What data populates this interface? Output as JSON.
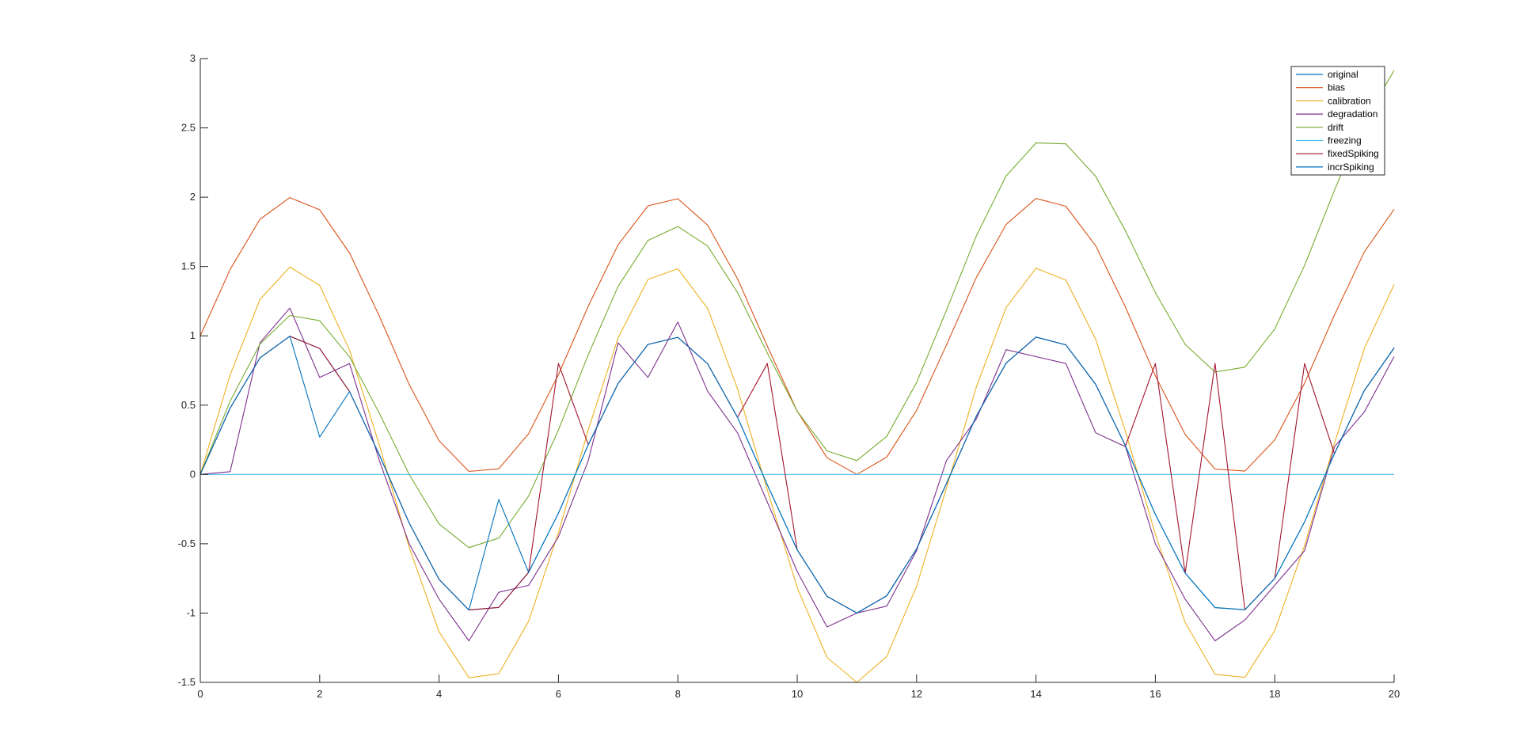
{
  "chart_data": {
    "type": "line",
    "title": "",
    "xlabel": "",
    "ylabel": "",
    "xlim": [
      0,
      20
    ],
    "ylim": [
      -1.5,
      3
    ],
    "xticks": [
      0,
      2,
      4,
      6,
      8,
      10,
      12,
      14,
      16,
      18,
      20
    ],
    "yticks": [
      -1.5,
      -1,
      -0.5,
      0,
      0.5,
      1,
      1.5,
      2,
      2.5,
      3
    ],
    "xtick_labels": [
      "0",
      "2",
      "4",
      "6",
      "8",
      "10",
      "12",
      "14",
      "16",
      "18",
      "20"
    ],
    "ytick_labels": [
      "-1.5",
      "-1",
      "-0.5",
      "0",
      "0.5",
      "1",
      "1.5",
      "2",
      "2.5",
      "3"
    ],
    "grid": false,
    "legend_position": "top-right",
    "x": [
      0,
      0.5,
      1,
      1.5,
      2,
      2.5,
      3,
      3.5,
      4,
      4.5,
      5,
      5.5,
      6,
      6.5,
      7,
      7.5,
      8,
      8.5,
      9,
      9.5,
      10,
      10.5,
      11,
      11.5,
      12,
      12.5,
      13,
      13.5,
      14,
      14.5,
      15,
      15.5,
      16,
      16.5,
      17,
      17.5,
      18,
      18.5,
      19,
      19.5,
      20
    ],
    "series": [
      {
        "name": "original",
        "color": "#0072BD",
        "values": [
          0,
          0.479,
          0.841,
          0.997,
          0.909,
          0.598,
          0.141,
          -0.351,
          -0.757,
          -0.978,
          -0.959,
          -0.706,
          -0.279,
          0.215,
          0.657,
          0.938,
          0.989,
          0.798,
          0.412,
          -0.075,
          -0.544,
          -0.88,
          -1,
          -0.875,
          -0.537,
          -0.066,
          0.42,
          0.803,
          0.991,
          0.935,
          0.65,
          0.206,
          -0.288,
          -0.712,
          -0.961,
          -0.976,
          -0.751,
          -0.342,
          0.15,
          0.605,
          0.913
        ]
      },
      {
        "name": "bias",
        "color": "#D95319",
        "values": [
          1,
          1.479,
          1.841,
          1.997,
          1.909,
          1.598,
          1.141,
          0.649,
          0.243,
          0.022,
          0.041,
          0.294,
          0.721,
          1.215,
          1.657,
          1.938,
          1.989,
          1.798,
          1.412,
          0.925,
          0.456,
          0.12,
          0,
          0.125,
          0.463,
          0.934,
          1.42,
          1.803,
          1.991,
          1.935,
          1.65,
          1.206,
          0.712,
          0.288,
          0.039,
          0.024,
          0.249,
          0.658,
          1.15,
          1.605,
          1.913
        ]
      },
      {
        "name": "calibration",
        "color": "#EDB120",
        "values": [
          0,
          0.719,
          1.262,
          1.496,
          1.364,
          0.897,
          0.212,
          -0.527,
          -1.135,
          -1.467,
          -1.438,
          -1.059,
          -0.419,
          0.323,
          0.985,
          1.407,
          1.484,
          1.197,
          0.618,
          -0.113,
          -0.816,
          -1.32,
          -1.5,
          -1.313,
          -0.806,
          -0.099,
          0.63,
          1.205,
          1.487,
          1.403,
          0.975,
          0.309,
          -0.432,
          -1.068,
          -1.442,
          -1.464,
          -1.127,
          -0.513,
          0.225,
          0.908,
          1.37
        ]
      },
      {
        "name": "degradation",
        "color": "#7E2F8E",
        "values": [
          0,
          0.02,
          0.95,
          1.2,
          0.7,
          0.8,
          0.1,
          -0.5,
          -0.9,
          -1.2,
          -0.85,
          -0.8,
          -0.45,
          0.1,
          0.95,
          0.7,
          1.1,
          0.6,
          0.3,
          -0.2,
          -0.7,
          -1.1,
          -1.0,
          -0.95,
          -0.55,
          0.1,
          0.4,
          0.9,
          0.85,
          0.8,
          0.3,
          0.2,
          -0.5,
          -0.9,
          -1.2,
          -1.05,
          -0.8,
          -0.55,
          0.2,
          0.45,
          0.85
        ]
      },
      {
        "name": "drift",
        "color": "#77AC30",
        "values": [
          0,
          0.529,
          0.941,
          1.147,
          1.109,
          0.848,
          0.441,
          -0.001,
          -0.357,
          -0.528,
          -0.459,
          -0.156,
          0.321,
          0.865,
          1.357,
          1.688,
          1.789,
          1.648,
          1.312,
          0.875,
          0.456,
          0.17,
          0.1,
          0.275,
          0.663,
          1.184,
          1.72,
          2.153,
          2.391,
          2.385,
          2.15,
          1.756,
          1.312,
          0.938,
          0.739,
          0.774,
          1.049,
          1.508,
          2.05,
          2.555,
          2.913
        ]
      },
      {
        "name": "freezing",
        "color": "#4DBEEE",
        "values": [
          0,
          0,
          0,
          0,
          0,
          0,
          0,
          0,
          0,
          0,
          0,
          0,
          0,
          0,
          0,
          0,
          0,
          0,
          0,
          0,
          0,
          0,
          0,
          0,
          0,
          0,
          0,
          0,
          0,
          0,
          0,
          0,
          0,
          0,
          0,
          0,
          0,
          0,
          0,
          0,
          0
        ]
      },
      {
        "name": "fixedSpiking",
        "color": "#A2142F",
        "values": [
          0,
          0.479,
          0.841,
          0.997,
          0.909,
          0.598,
          0.141,
          -0.351,
          -0.757,
          -0.978,
          -0.959,
          -0.706,
          0.8,
          0.215,
          0.657,
          0.938,
          0.989,
          0.798,
          0.412,
          0.8,
          -0.544,
          -0.88,
          -1,
          -0.875,
          -0.537,
          -0.066,
          0.42,
          0.803,
          0.991,
          0.935,
          0.65,
          0.206,
          0.8,
          -0.712,
          0.8,
          -0.976,
          -0.751,
          0.8,
          0.15,
          0.605,
          0.913
        ]
      },
      {
        "name": "incrSpiking",
        "color": "#0072BD",
        "values": [
          0,
          0.479,
          0.841,
          0.997,
          0.27,
          0.598,
          0.141,
          -0.351,
          -0.757,
          -0.978,
          -0.18,
          -0.706,
          -0.279,
          0.215,
          0.657,
          0.938,
          0.989,
          0.798,
          0.412,
          -0.075,
          -0.544,
          -0.88,
          -1,
          -0.875,
          -0.537,
          -0.066,
          0.42,
          0.803,
          0.991,
          0.935,
          0.65,
          0.206,
          -0.288,
          -0.712,
          -0.961,
          -0.976,
          -0.751,
          -0.342,
          0.15,
          0.605,
          0.913
        ]
      }
    ]
  }
}
